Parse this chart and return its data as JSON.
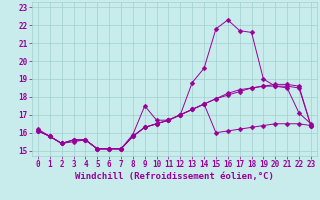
{
  "xlabel": "Windchill (Refroidissement éolien,°C)",
  "background_color": "#c8ecec",
  "line_color": "#990099",
  "xlim": [
    -0.5,
    23.5
  ],
  "ylim": [
    14.7,
    23.3
  ],
  "yticks": [
    15,
    16,
    17,
    18,
    19,
    20,
    21,
    22,
    23
  ],
  "xticks": [
    0,
    1,
    2,
    3,
    4,
    5,
    6,
    7,
    8,
    9,
    10,
    11,
    12,
    13,
    14,
    15,
    16,
    17,
    18,
    19,
    20,
    21,
    22,
    23
  ],
  "lines": [
    {
      "x": [
        0,
        1,
        2,
        3,
        4,
        5,
        6,
        7,
        8,
        9,
        10,
        11,
        12,
        13,
        14,
        15,
        16,
        17,
        18,
        19,
        20,
        21,
        22,
        23
      ],
      "y": [
        16.2,
        15.8,
        15.4,
        15.6,
        15.6,
        15.1,
        15.1,
        15.1,
        15.9,
        17.5,
        16.7,
        16.7,
        17.0,
        18.8,
        19.6,
        21.8,
        22.3,
        21.7,
        21.6,
        19.0,
        18.6,
        18.5,
        17.1,
        16.5
      ]
    },
    {
      "x": [
        0,
        1,
        2,
        3,
        4,
        5,
        6,
        7,
        8,
        9,
        10,
        11,
        12,
        13,
        14,
        15,
        16,
        17,
        18,
        19,
        20,
        21,
        22,
        23
      ],
      "y": [
        16.1,
        15.8,
        15.4,
        15.6,
        15.6,
        15.1,
        15.1,
        15.1,
        15.8,
        16.3,
        16.5,
        16.7,
        17.0,
        17.3,
        17.6,
        17.9,
        18.1,
        18.3,
        18.5,
        18.6,
        18.6,
        18.6,
        18.5,
        16.4
      ]
    },
    {
      "x": [
        0,
        1,
        2,
        3,
        4,
        5,
        6,
        7,
        8,
        9,
        10,
        11,
        12,
        13,
        14,
        15,
        16,
        17,
        18,
        19,
        20,
        21,
        22,
        23
      ],
      "y": [
        16.1,
        15.8,
        15.4,
        15.5,
        15.6,
        15.1,
        15.1,
        15.1,
        15.8,
        16.3,
        16.5,
        16.7,
        17.0,
        17.3,
        17.6,
        17.9,
        18.2,
        18.4,
        18.5,
        18.6,
        18.7,
        18.7,
        18.6,
        16.4
      ]
    },
    {
      "x": [
        0,
        1,
        2,
        3,
        4,
        5,
        6,
        7,
        8,
        9,
        10,
        11,
        12,
        13,
        14,
        15,
        16,
        17,
        18,
        19,
        20,
        21,
        22,
        23
      ],
      "y": [
        16.1,
        15.8,
        15.4,
        15.6,
        15.6,
        15.1,
        15.1,
        15.1,
        15.8,
        16.3,
        16.5,
        16.7,
        17.0,
        17.3,
        17.6,
        16.0,
        16.1,
        16.2,
        16.3,
        16.4,
        16.5,
        16.5,
        16.5,
        16.4
      ]
    }
  ],
  "marker": "D",
  "marker_size": 2.5,
  "grid_color": "#a0d0d0",
  "tick_color": "#990099",
  "tick_labelsize": 5.5,
  "xlabel_fontsize": 6.5
}
